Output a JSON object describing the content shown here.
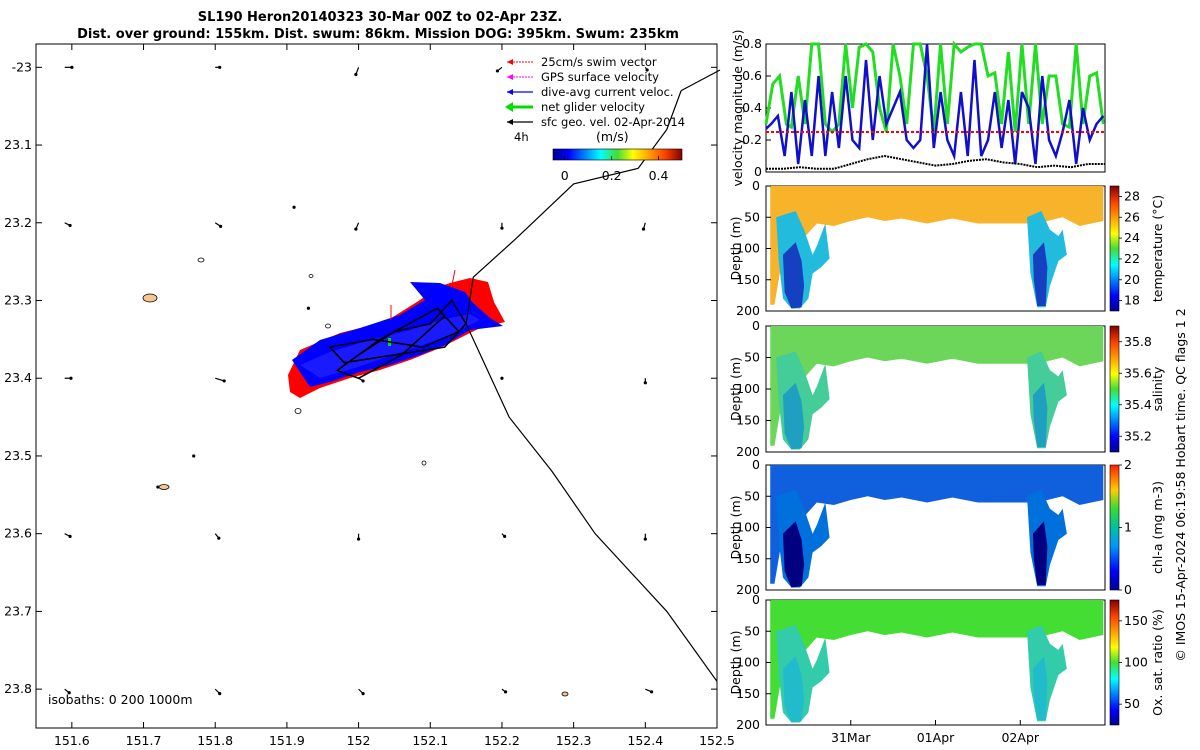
{
  "figure": {
    "title_line1": "SL190 Heron20140323 30-Mar 00Z to 02-Apr 23Z.",
    "title_line2": "Dist. over ground: 155km. Dist. swum: 86km. Mission DOG: 395km. Swum: 235km",
    "credit": "© IMOS 15-Apr-2024 06:19:58 Hobart time. QC flags 1  2",
    "colors": {
      "red": "#ff0000",
      "magenta": "#ff00ff",
      "blue": "#0000ff",
      "green": "#00dd00",
      "black": "#000000",
      "land": "#f5c592"
    }
  },
  "chart_data": [
    {
      "type": "scatter",
      "name": "glider-track-map",
      "xlim": [
        151.55,
        152.5
      ],
      "ylim": [
        -23.85,
        -22.97
      ],
      "x_ticks": [
        151.6,
        151.7,
        151.8,
        151.9,
        152,
        152.1,
        152.2,
        152.3,
        152.4,
        152.5
      ],
      "x_tick_labels": [
        "151.6",
        "151.7",
        "151.8",
        "151.9",
        "152",
        "152.1",
        "152.2",
        "152.3",
        "152.4",
        "152.5"
      ],
      "y_ticks": [
        -23,
        -23.1,
        -23.2,
        -23.3,
        -23.4,
        -23.5,
        -23.6,
        -23.7,
        -23.8
      ],
      "y_tick_labels": [
        "-23",
        "23.1",
        "23.2",
        "23.3",
        "23.4",
        "23.5",
        "23.6",
        "23.7",
        "23.8"
      ],
      "legend": {
        "placement": "top-right",
        "entries": [
          "25cm/s swim vector",
          "GPS surface velocity",
          "dive-avg current veloc.",
          "net glider velocity",
          "sfc geo. vel. 02-Apr-2014"
        ],
        "interval_label": "4h"
      },
      "colorbar": {
        "label": "(m/s)",
        "ticks": [
          0,
          0.2,
          0.4
        ],
        "tick_labels": [
          "0",
          "0.2",
          "0.4"
        ],
        "range": [
          -0.05,
          0.5
        ]
      },
      "isobaths_label": "isobaths: 0    200   1000m",
      "track": {
        "lon": [
          152.0,
          152.05,
          152.1,
          152.13,
          152.15,
          152.12,
          152.05,
          151.98,
          151.96,
          152.02,
          152.09,
          152.14,
          152.11,
          152.03,
          151.97,
          152.0,
          152.06,
          152.12
        ],
        "lat": [
          -23.37,
          -23.34,
          -23.33,
          -23.3,
          -23.33,
          -23.36,
          -23.37,
          -23.38,
          -23.36,
          -23.35,
          -23.36,
          -23.34,
          -23.31,
          -23.35,
          -23.39,
          -23.4,
          -23.37,
          -23.32
        ]
      },
      "geo_vectors": {
        "lon": [
          151.59,
          151.8,
          152,
          152.2,
          152.4,
          151.59,
          151.8,
          152,
          152.2,
          152.4,
          151.59,
          151.8,
          152,
          152.2,
          152.4,
          151.59,
          151.8,
          152,
          152.2,
          152.4,
          151.59,
          151.8,
          152,
          152.2,
          152.4,
          151.91,
          151.93,
          151.77,
          151.72
        ],
        "lat": [
          -23.0,
          -23.0,
          -23.0,
          -23.0,
          -23.0,
          -23.2,
          -23.2,
          -23.2,
          -23.2,
          -23.2,
          -23.4,
          -23.4,
          -23.4,
          -23.4,
          -23.4,
          -23.6,
          -23.6,
          -23.6,
          -23.6,
          -23.6,
          -23.8,
          -23.8,
          -23.8,
          -23.8,
          -23.8,
          -23.18,
          -23.31,
          -23.5,
          -23.54
        ],
        "u": [
          0.08,
          0.05,
          -0.03,
          -0.05,
          0.02,
          0.06,
          0.06,
          -0.03,
          0.0,
          -0.02,
          0.07,
          0.1,
          0.05,
          0.0,
          0.0,
          0.06,
          0.04,
          0.0,
          0.03,
          0.0,
          0.05,
          0.05,
          0.05,
          0.04,
          0.07,
          0.0,
          0.0,
          0.0,
          0.0
        ],
        "v": [
          0.0,
          0.0,
          -0.08,
          -0.04,
          -0.03,
          -0.03,
          -0.04,
          -0.07,
          -0.06,
          -0.07,
          0.0,
          -0.03,
          -0.03,
          0.0,
          -0.05,
          -0.03,
          -0.05,
          -0.06,
          -0.03,
          -0.06,
          -0.04,
          -0.05,
          -0.05,
          -0.03,
          -0.03,
          0.0,
          0.0,
          0.0,
          0.0
        ]
      },
      "path_line": {
        "lon": [
          152.5,
          152.43,
          152.33,
          152.27,
          152.21,
          152.16,
          152.15,
          152.16,
          152.22,
          152.3,
          152.39,
          152.43,
          152.45
        ],
        "lat": [
          -23.79,
          -23.7,
          -23.6,
          -23.52,
          -23.45,
          -23.35,
          -23.33,
          -23.27,
          -23.22,
          -23.15,
          -23.13,
          -23.08,
          -23.03
        ]
      }
    },
    {
      "type": "line",
      "name": "velocity-magnitude",
      "ylabel": "velocity magnitude (m/s)",
      "ylim": [
        0,
        0.8
      ],
      "y_ticks": [
        0,
        0.2,
        0.4,
        0.6,
        0.8
      ],
      "y_tick_labels": [
        "0",
        "0.2",
        "0.4",
        "0.6",
        "0.8"
      ],
      "xlim": [
        0,
        4
      ],
      "series": [
        {
          "name": "net glider velocity",
          "color": "green",
          "x": [
            0,
            0.08,
            0.16,
            0.24,
            0.3,
            0.38,
            0.46,
            0.54,
            0.62,
            0.7,
            0.78,
            0.86,
            0.94,
            1.02,
            1.1,
            1.18,
            1.26,
            1.34,
            1.42,
            1.5,
            1.58,
            1.66,
            1.74,
            1.82,
            1.9,
            1.98,
            2.06,
            2.14,
            2.22,
            2.3,
            2.38,
            2.46,
            2.54,
            2.62,
            2.7,
            2.78,
            2.86,
            2.94,
            3.02,
            3.1,
            3.18,
            3.26,
            3.34,
            3.42,
            3.5,
            3.58,
            3.66,
            3.74,
            3.82,
            3.9,
            3.98
          ],
          "values": [
            0.3,
            0.55,
            0.6,
            0.3,
            0.28,
            0.6,
            0.3,
            0.8,
            0.8,
            0.3,
            0.25,
            0.3,
            0.8,
            0.4,
            0.78,
            0.8,
            0.75,
            0.4,
            0.25,
            0.8,
            0.6,
            0.3,
            0.8,
            0.8,
            0.6,
            0.25,
            0.8,
            0.3,
            0.8,
            0.75,
            0.78,
            0.8,
            0.8,
            0.6,
            0.62,
            0.3,
            0.75,
            0.25,
            0.8,
            0.3,
            0.8,
            0.3,
            0.6,
            0.6,
            0.3,
            0.28,
            0.8,
            0.3,
            0.6,
            0.62,
            0.3
          ]
        },
        {
          "name": "dive-avg current veloc.",
          "color": "blue",
          "x": [
            0,
            0.06,
            0.14,
            0.22,
            0.3,
            0.38,
            0.46,
            0.54,
            0.62,
            0.7,
            0.78,
            0.86,
            0.94,
            1.02,
            1.1,
            1.18,
            1.26,
            1.34,
            1.42,
            1.5,
            1.58,
            1.66,
            1.74,
            1.82,
            1.9,
            1.98,
            2.06,
            2.14,
            2.22,
            2.3,
            2.38,
            2.46,
            2.54,
            2.62,
            2.7,
            2.78,
            2.86,
            2.94,
            3.02,
            3.1,
            3.18,
            3.26,
            3.34,
            3.42,
            3.5,
            3.58,
            3.66,
            3.74,
            3.82,
            3.9,
            3.98
          ],
          "values": [
            0.27,
            0.3,
            0.35,
            0.1,
            0.5,
            0.05,
            0.45,
            0.1,
            0.6,
            0.1,
            0.5,
            0.15,
            0.6,
            0.2,
            0.15,
            0.7,
            0.2,
            0.6,
            0.3,
            0.4,
            0.5,
            0.2,
            0.15,
            0.2,
            0.8,
            0.15,
            0.5,
            0.2,
            0.1,
            0.5,
            0.1,
            0.7,
            0.1,
            0.2,
            0.5,
            0.15,
            0.45,
            0.05,
            0.5,
            0.4,
            0.05,
            0.6,
            0.2,
            0.1,
            0.25,
            0.45,
            0.05,
            0.4,
            0.2,
            0.3,
            0.35
          ]
        },
        {
          "name": "swim speed",
          "color": "red",
          "x": [
            0,
            4
          ],
          "values": [
            0.25,
            0.25
          ]
        },
        {
          "name": "sfc geo speed",
          "color": "black",
          "x": [
            0,
            0.2,
            0.4,
            0.6,
            0.8,
            1.0,
            1.2,
            1.4,
            1.6,
            1.8,
            2.0,
            2.2,
            2.4,
            2.6,
            2.8,
            3.0,
            3.2,
            3.4,
            3.6,
            3.8,
            4.0
          ],
          "values": [
            0.02,
            0.02,
            0.03,
            0.02,
            0.02,
            0.05,
            0.08,
            0.1,
            0.08,
            0.06,
            0.04,
            0.05,
            0.07,
            0.08,
            0.06,
            0.05,
            0.03,
            0.04,
            0.03,
            0.05,
            0.05
          ]
        }
      ]
    },
    {
      "type": "heatmap",
      "name": "temperature-section",
      "ylabel": "Depth (m)",
      "colorbar_label": "temperature (°C)",
      "ylim": [
        200,
        0
      ],
      "y_ticks": [
        0,
        50,
        100,
        150,
        200
      ],
      "y_tick_labels": [
        "0",
        "50",
        "100",
        "150",
        "200"
      ],
      "clim": [
        17,
        29
      ],
      "colorbar_ticks": [
        18,
        20,
        22,
        24,
        26,
        28
      ],
      "colorbar_tick_labels": [
        "18",
        "20",
        "22",
        "24",
        "26",
        "28"
      ],
      "surface_value": 26.5,
      "deep_value": 17.5
    },
    {
      "type": "heatmap",
      "name": "salinity-section",
      "ylabel": "Depth (m)",
      "colorbar_label": "salinity",
      "ylim": [
        200,
        0
      ],
      "y_ticks": [
        0,
        50,
        100,
        150,
        200
      ],
      "y_tick_labels": [
        "0",
        "50",
        "100",
        "150",
        "200"
      ],
      "clim": [
        35.1,
        35.9
      ],
      "colorbar_ticks": [
        35.2,
        35.4,
        35.6,
        35.8
      ],
      "colorbar_tick_labels": [
        "35.2",
        "35.4",
        "35.6",
        "35.8"
      ],
      "surface_value": 35.5,
      "deep_value": 35.4
    },
    {
      "type": "heatmap",
      "name": "chlorophyll-section",
      "ylabel": "Depth (m)",
      "colorbar_label": "chl-a (mg m-3)",
      "ylim": [
        200,
        0
      ],
      "y_ticks": [
        0,
        50,
        100,
        150,
        200
      ],
      "y_tick_labels": [
        "0",
        "50",
        "100",
        "150",
        "200"
      ],
      "clim": [
        0,
        2
      ],
      "colorbar_ticks": [
        0,
        1,
        2
      ],
      "colorbar_tick_labels": [
        "0",
        "1",
        "2"
      ],
      "surface_value": 0.3,
      "deep_value": 0.1
    },
    {
      "type": "heatmap",
      "name": "oxygen-section",
      "ylabel": "Depth (m)",
      "colorbar_label": "Ox. sat. ratio (%)",
      "ylim": [
        200,
        0
      ],
      "y_ticks": [
        0,
        50,
        100,
        150,
        200
      ],
      "y_tick_labels": [
        "0",
        "50",
        "100",
        "150",
        "200"
      ],
      "clim": [
        25,
        175
      ],
      "colorbar_ticks": [
        50,
        100,
        150
      ],
      "colorbar_tick_labels": [
        "50",
        "100",
        "150"
      ],
      "surface_value": 100,
      "deep_value": 65,
      "x_ticks": [
        1.0,
        2.0,
        3.0
      ],
      "x_tick_labels": [
        "31Mar",
        "01Apr",
        "02Apr"
      ]
    }
  ]
}
